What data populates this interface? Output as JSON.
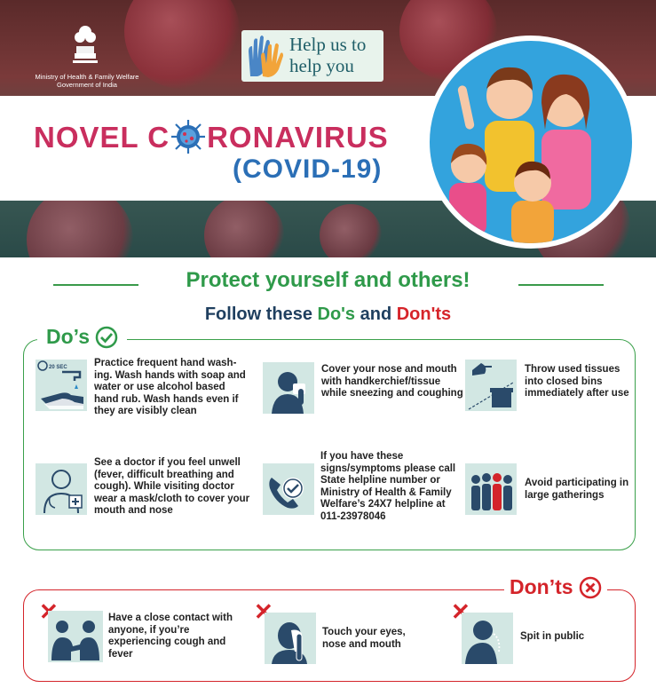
{
  "header": {
    "ministry_line1": "Ministry of Health & Family Welfare",
    "ministry_line2": "Government of India",
    "help_line1": "Help us to",
    "help_line2": "help you",
    "title_part1": "NOVEL C",
    "title_part2": "RONAVIRUS",
    "title_line2": "(COVID-19)"
  },
  "section": {
    "headline": "Protect yourself and others!",
    "sub_prefix": "Follow these ",
    "sub_dos": "Do's",
    "sub_and": " and ",
    "sub_donts": "Don'ts"
  },
  "dos": {
    "label": "Do’s",
    "items": [
      {
        "icon": "hand-wash-icon",
        "timer": "20 SEC",
        "text": "Practice frequent hand wash-ing. Wash hands with soap and water or use alcohol based hand rub. Wash hands even if they are visibly clean"
      },
      {
        "icon": "cover-sneeze-icon",
        "text": "Cover your nose and mouth with handkerchief/tissue while sneezing and coughing"
      },
      {
        "icon": "bin-icon",
        "text": "Throw used tissues into closed bins immediately after use"
      },
      {
        "icon": "doctor-icon",
        "text": "See a doctor if you feel unwell (fever, difficult breathing and cough). While visiting doctor wear a mask/cloth to cover your mouth and nose"
      },
      {
        "icon": "phone-helpline-icon",
        "text": "If you have these signs/symptoms please call State helpline number or Ministry of Health & Family Welfare’s 24X7 helpline at 011-23978046"
      },
      {
        "icon": "crowd-icon",
        "text": "Avoid participating in large gatherings"
      }
    ]
  },
  "donts": {
    "label": "Don’ts",
    "items": [
      {
        "icon": "close-contact-icon",
        "text": "Have a close contact with anyone, if you’re experiencing cough and fever"
      },
      {
        "icon": "touch-face-icon",
        "text": "Touch your eyes, nose and mouth"
      },
      {
        "icon": "spit-icon",
        "text": "Spit in public"
      }
    ]
  },
  "colors": {
    "green": "#2f9a4a",
    "red": "#d4242a",
    "pink": "#c92e5e",
    "blue": "#2b6fb6",
    "navy": "#1f3f5f"
  }
}
